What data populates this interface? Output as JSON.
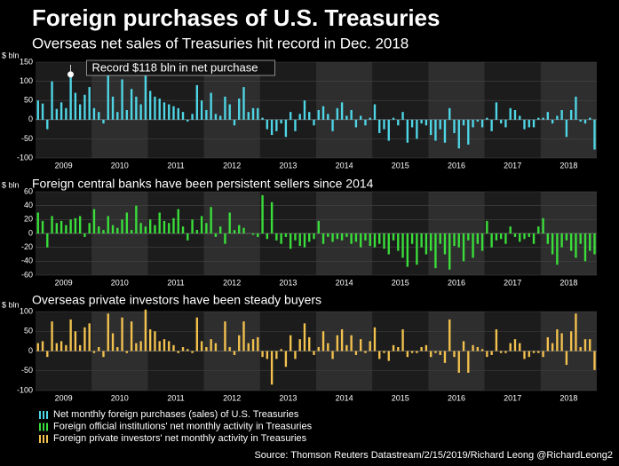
{
  "title": "Foreign purchases of U.S. Treasuries",
  "source": "Source: Thomson Reuters Datastream/2/15/2019/Richard Leong @RichardLeong2",
  "chart_data": [
    {
      "type": "bar",
      "title": "Overseas net sales of Treasuries hit record in Dec. 2018",
      "ylabel": "$ bln",
      "annotation": "Record $118 bln in net purchase",
      "categories": [
        null,
        null,
        null,
        null,
        null,
        null,
        "2009",
        null,
        null,
        null,
        null,
        null,
        null,
        null,
        null,
        null,
        null,
        null,
        "2010",
        null,
        null,
        null,
        null,
        null,
        null,
        null,
        null,
        null,
        null,
        null,
        "2011",
        null,
        null,
        null,
        null,
        null,
        null,
        null,
        null,
        null,
        null,
        null,
        "2012",
        null,
        null,
        null,
        null,
        null,
        null,
        null,
        null,
        null,
        null,
        null,
        "2013",
        null,
        null,
        null,
        null,
        null,
        null,
        null,
        null,
        null,
        null,
        null,
        "2014",
        null,
        null,
        null,
        null,
        null,
        null,
        null,
        null,
        null,
        null,
        null,
        "2015",
        null,
        null,
        null,
        null,
        null,
        null,
        null,
        null,
        null,
        null,
        null,
        "2016",
        null,
        null,
        null,
        null,
        null,
        null,
        null,
        null,
        null,
        null,
        null,
        "2017",
        null,
        null,
        null,
        null,
        null,
        null,
        null,
        null,
        null,
        null,
        null,
        "2018",
        null,
        null,
        null,
        null,
        null
      ],
      "series": [
        {
          "name": "Net monthly foreign purchases (sales) of U.S. Treasuries",
          "color": "#4fd6e6",
          "values": [
            50,
            42,
            -25,
            100,
            28,
            45,
            30,
            118,
            70,
            40,
            65,
            85,
            30,
            20,
            -10,
            118,
            60,
            20,
            105,
            25,
            80,
            60,
            40,
            118,
            75,
            60,
            55,
            45,
            40,
            35,
            30,
            20,
            -5,
            15,
            90,
            50,
            25,
            70,
            15,
            10,
            60,
            40,
            -15,
            55,
            85,
            20,
            30,
            30,
            5,
            -25,
            -40,
            -30,
            -10,
            -45,
            20,
            -30,
            15,
            50,
            20,
            -15,
            25,
            35,
            15,
            -30,
            30,
            45,
            10,
            25,
            -20,
            10,
            -15,
            5,
            40,
            -35,
            -25,
            -55,
            5,
            -15,
            20,
            -60,
            -20,
            -50,
            -10,
            -15,
            -40,
            -55,
            -25,
            -60,
            30,
            -35,
            -75,
            -15,
            -65,
            -20,
            -5,
            -20,
            5,
            -30,
            45,
            -10,
            -20,
            30,
            25,
            10,
            -25,
            -20,
            -20,
            5,
            5,
            20,
            -10,
            10,
            25,
            -45,
            25,
            60,
            -5,
            -10,
            5,
            -78
          ]
        }
      ],
      "ylim": [
        -100,
        150
      ],
      "yticks": [
        -100,
        -50,
        0,
        50,
        100,
        150
      ]
    },
    {
      "type": "bar",
      "title": "Foreign central banks have been persistent sellers since 2014",
      "ylabel": "$ bln",
      "categories": [
        null,
        null,
        null,
        null,
        null,
        null,
        "2009",
        null,
        null,
        null,
        null,
        null,
        null,
        null,
        null,
        null,
        null,
        null,
        "2010",
        null,
        null,
        null,
        null,
        null,
        null,
        null,
        null,
        null,
        null,
        null,
        "2011",
        null,
        null,
        null,
        null,
        null,
        null,
        null,
        null,
        null,
        null,
        null,
        "2012",
        null,
        null,
        null,
        null,
        null,
        null,
        null,
        null,
        null,
        null,
        null,
        "2013",
        null,
        null,
        null,
        null,
        null,
        null,
        null,
        null,
        null,
        null,
        null,
        "2014",
        null,
        null,
        null,
        null,
        null,
        null,
        null,
        null,
        null,
        null,
        null,
        "2015",
        null,
        null,
        null,
        null,
        null,
        null,
        null,
        null,
        null,
        null,
        null,
        "2016",
        null,
        null,
        null,
        null,
        null,
        null,
        null,
        null,
        null,
        null,
        null,
        "2017",
        null,
        null,
        null,
        null,
        null,
        null,
        null,
        null,
        null,
        null,
        null,
        "2018",
        null,
        null,
        null,
        null,
        null
      ],
      "series": [
        {
          "name": "Foreign official institutions' net monthly activity in Treasuries",
          "color": "#3ade3a",
          "values": [
            30,
            18,
            -20,
            25,
            15,
            18,
            12,
            20,
            22,
            25,
            -5,
            15,
            35,
            10,
            5,
            25,
            12,
            8,
            20,
            30,
            5,
            40,
            15,
            10,
            20,
            12,
            30,
            18,
            15,
            22,
            35,
            10,
            -10,
            20,
            5,
            25,
            15,
            38,
            -5,
            10,
            -15,
            30,
            5,
            12,
            8,
            0,
            -2,
            -5,
            55,
            -8,
            45,
            -10,
            -15,
            -5,
            -22,
            -10,
            -18,
            -20,
            -12,
            -8,
            18,
            -15,
            -5,
            -12,
            -8,
            -10,
            -5,
            -15,
            -12,
            -20,
            -10,
            -18,
            -20,
            -15,
            -22,
            -30,
            -10,
            -25,
            -35,
            -48,
            -15,
            -45,
            -20,
            -30,
            -25,
            -50,
            -15,
            -30,
            -52,
            -18,
            -20,
            -40,
            -10,
            -35,
            -15,
            -25,
            18,
            -20,
            -10,
            -8,
            -15,
            10,
            -5,
            -12,
            -8,
            -5,
            -15,
            10,
            22,
            -15,
            -30,
            -45,
            -20,
            -10,
            -25,
            -35,
            -15,
            -40,
            -25,
            -30
          ]
        }
      ],
      "ylim": [
        -60,
        60
      ],
      "yticks": [
        -60,
        -40,
        -20,
        0,
        20,
        40,
        60
      ]
    },
    {
      "type": "bar",
      "title": "Overseas private investors have been steady buyers",
      "ylabel": "$ bln",
      "categories": [
        null,
        null,
        null,
        null,
        null,
        null,
        "2009",
        null,
        null,
        null,
        null,
        null,
        null,
        null,
        null,
        null,
        null,
        null,
        "2010",
        null,
        null,
        null,
        null,
        null,
        null,
        null,
        null,
        null,
        null,
        null,
        "2011",
        null,
        null,
        null,
        null,
        null,
        null,
        null,
        null,
        null,
        null,
        null,
        "2012",
        null,
        null,
        null,
        null,
        null,
        null,
        null,
        null,
        null,
        null,
        null,
        "2013",
        null,
        null,
        null,
        null,
        null,
        null,
        null,
        null,
        null,
        null,
        null,
        "2014",
        null,
        null,
        null,
        null,
        null,
        null,
        null,
        null,
        null,
        null,
        null,
        "2015",
        null,
        null,
        null,
        null,
        null,
        null,
        null,
        null,
        null,
        null,
        null,
        "2016",
        null,
        null,
        null,
        null,
        null,
        null,
        null,
        null,
        null,
        null,
        null,
        "2017",
        null,
        null,
        null,
        null,
        null,
        null,
        null,
        null,
        null,
        null,
        null,
        "2018",
        null,
        null,
        null,
        null,
        null
      ],
      "series": [
        {
          "name": "Foreign private investors' net monthly activity in Treasuries",
          "color": "#f2c14e",
          "values": [
            20,
            25,
            -15,
            75,
            20,
            25,
            15,
            80,
            50,
            15,
            60,
            70,
            -5,
            10,
            -15,
            95,
            45,
            10,
            85,
            -5,
            75,
            20,
            25,
            105,
            55,
            50,
            25,
            30,
            25,
            15,
            -5,
            10,
            5,
            -5,
            85,
            25,
            10,
            30,
            20,
            0,
            75,
            10,
            -10,
            40,
            75,
            20,
            30,
            35,
            -15,
            -20,
            -85,
            -20,
            5,
            -40,
            40,
            -20,
            30,
            70,
            35,
            -10,
            10,
            50,
            20,
            -20,
            40,
            55,
            15,
            40,
            -10,
            30,
            -5,
            25,
            60,
            -20,
            -5,
            -25,
            15,
            10,
            55,
            -15,
            -5,
            -5,
            10,
            15,
            -15,
            -5,
            -10,
            -30,
            80,
            -15,
            -55,
            25,
            -55,
            15,
            10,
            5,
            -15,
            -10,
            55,
            -5,
            -5,
            20,
            30,
            20,
            -20,
            -15,
            -5,
            -5,
            -15,
            35,
            20,
            55,
            45,
            -35,
            50,
            95,
            10,
            30,
            30,
            -48
          ]
        }
      ],
      "ylim": [
        -100,
        100
      ],
      "yticks": [
        -100,
        -50,
        0,
        50,
        100
      ]
    }
  ]
}
